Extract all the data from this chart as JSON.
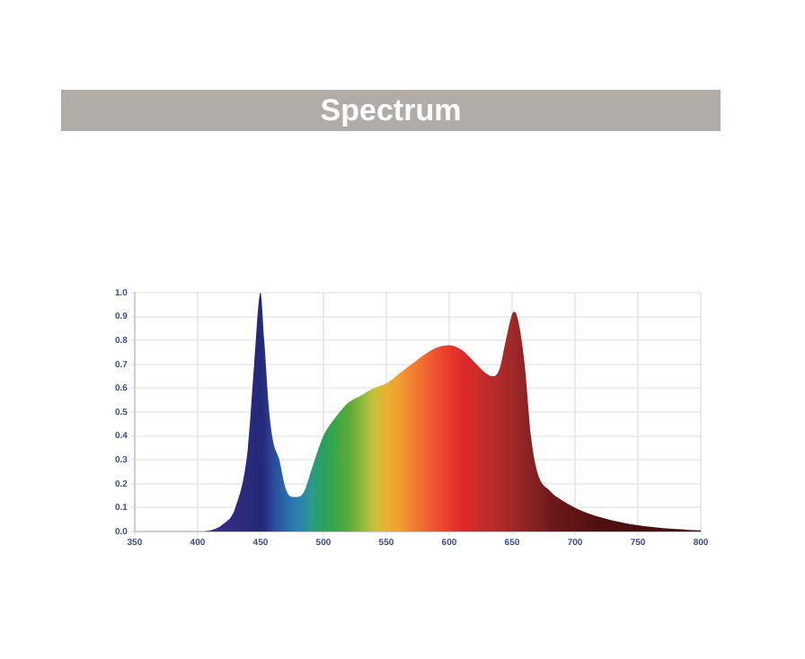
{
  "chart_data": {
    "type": "area",
    "title": "Spectrum",
    "x": [
      360,
      400,
      410,
      420,
      430,
      440,
      445,
      450,
      453,
      457,
      460,
      465,
      470,
      475,
      480,
      485,
      490,
      495,
      500,
      510,
      520,
      530,
      540,
      550,
      560,
      570,
      580,
      590,
      600,
      610,
      620,
      630,
      635,
      640,
      645,
      650,
      652,
      655,
      660,
      665,
      670,
      680,
      690,
      700,
      720,
      740,
      760,
      780,
      800
    ],
    "series": [
      {
        "values": [
          0,
          0,
          0.005,
          0.03,
          0.1,
          0.35,
          0.7,
          1.0,
          0.8,
          0.5,
          0.38,
          0.3,
          0.18,
          0.145,
          0.145,
          0.17,
          0.25,
          0.33,
          0.4,
          0.48,
          0.54,
          0.57,
          0.6,
          0.62,
          0.66,
          0.7,
          0.74,
          0.77,
          0.78,
          0.76,
          0.71,
          0.66,
          0.65,
          0.68,
          0.8,
          0.91,
          0.92,
          0.88,
          0.7,
          0.4,
          0.25,
          0.17,
          0.13,
          0.1,
          0.06,
          0.035,
          0.02,
          0.01,
          0.005
        ],
        "colors": [
          "#5a2a8a",
          "#5a2a8a",
          "#4a2a88",
          "#3a2a84",
          "#302a80",
          "#2a2a7a",
          "#26297a",
          "#24297a",
          "#262e80",
          "#2a3c90",
          "#2a4a9a",
          "#2a5aa4",
          "#2a6aaa",
          "#2a76ae",
          "#2a80b0",
          "#2a8ca0",
          "#2a9a8a",
          "#2a9e70",
          "#2aa060",
          "#3aa848",
          "#5aaa3a",
          "#8ab83a",
          "#c8c03a",
          "#e8b030",
          "#f0a030",
          "#f08030",
          "#f06a30",
          "#ee5030",
          "#e83a2a",
          "#e02a2a",
          "#d02a2a",
          "#c02a2a",
          "#b82a2a",
          "#b02a2a",
          "#a82a2a",
          "#a02828",
          "#9c2626",
          "#982626",
          "#902424",
          "#882222",
          "#802020",
          "#701a1a",
          "#661616",
          "#601414",
          "#501010",
          "#4a1010",
          "#4a1010",
          "#4a1010",
          "#4a1010"
        ]
      }
    ],
    "xlim": [
      350,
      800
    ],
    "xticks": [
      350,
      400,
      450,
      500,
      550,
      600,
      650,
      700,
      750,
      800
    ],
    "ylim": [
      0,
      1.0
    ],
    "yticks": [
      {
        "value": 0,
        "label": "0.0"
      },
      0.1,
      0.2,
      0.3,
      0.4,
      0.5,
      0.6,
      0.7,
      0.8,
      0.9,
      {
        "value": 1,
        "label": "1.0"
      }
    ],
    "grid": true
  }
}
